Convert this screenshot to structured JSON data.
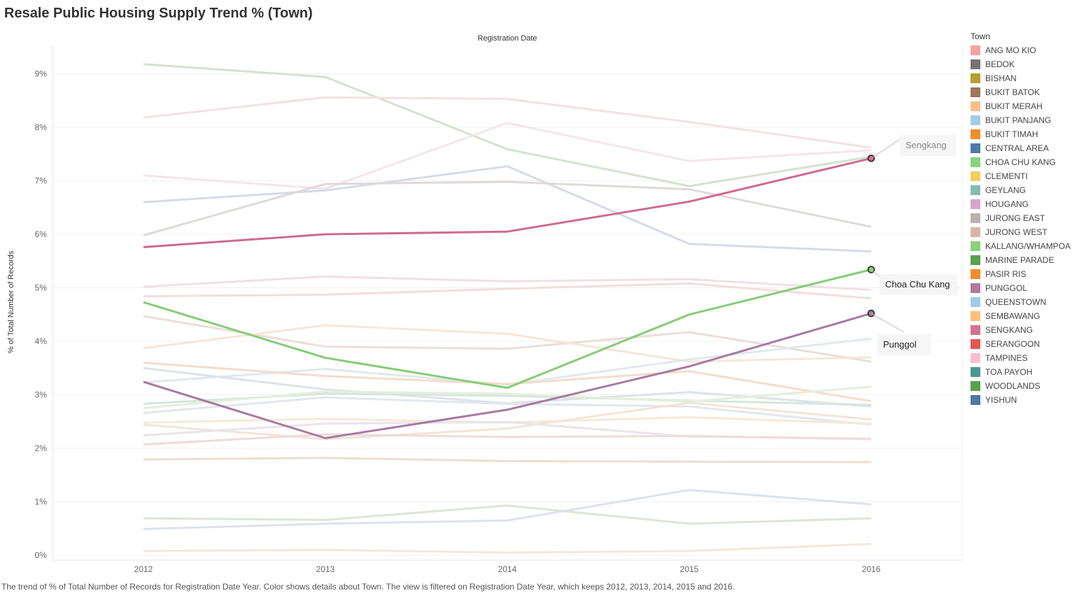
{
  "title": "Resale Public Housing Supply Trend % (Town)",
  "caption": "The trend of % of Total Number of Records for Registration Date Year.  Color shows details about Town. The view is filtered on Registration Date Year, which keeps 2012, 2013, 2014, 2015 and 2016.",
  "legend": {
    "title": "Town",
    "items": [
      {
        "label": "ANG MO KIO",
        "color": "#f4a3a3"
      },
      {
        "label": "BEDOK",
        "color": "#7a7270"
      },
      {
        "label": "BISHAN",
        "color": "#b5a02f"
      },
      {
        "label": "BUKIT BATOK",
        "color": "#a0765b"
      },
      {
        "label": "BUKIT MERAH",
        "color": "#f7c08a"
      },
      {
        "label": "BUKIT PANJANG",
        "color": "#a5cbe4"
      },
      {
        "label": "BUKIT TIMAH",
        "color": "#f28e2b"
      },
      {
        "label": "CENTRAL AREA",
        "color": "#4e79a7"
      },
      {
        "label": "CHOA CHU KANG",
        "color": "#8cd17d"
      },
      {
        "label": "CLEMENTI",
        "color": "#f1ce63"
      },
      {
        "label": "GEYLANG",
        "color": "#86bcb6"
      },
      {
        "label": "HOUGANG",
        "color": "#d4a6c8"
      },
      {
        "label": "JURONG EAST",
        "color": "#bab0ac"
      },
      {
        "label": "JURONG WEST",
        "color": "#d7b5a6"
      },
      {
        "label": "KALLANG/WHAMPOA",
        "color": "#8cd17d"
      },
      {
        "label": "MARINE PARADE",
        "color": "#59a14f"
      },
      {
        "label": "PASIR RIS",
        "color": "#f28e2b"
      },
      {
        "label": "PUNGGOL",
        "color": "#b07aa1"
      },
      {
        "label": "QUEENSTOWN",
        "color": "#a0cbe8"
      },
      {
        "label": "SEMBAWANG",
        "color": "#ffbe7d"
      },
      {
        "label": "SENGKANG",
        "color": "#d37295"
      },
      {
        "label": "SERANGOON",
        "color": "#e15759"
      },
      {
        "label": "TAMPINES",
        "color": "#fabfd2"
      },
      {
        "label": "TOA PAYOH",
        "color": "#499894"
      },
      {
        "label": "WOODLANDS",
        "color": "#59a14f"
      },
      {
        "label": "YISHUN",
        "color": "#4e79a7"
      }
    ]
  },
  "chart_data": {
    "type": "line",
    "x_title": "Registration Date",
    "ylabel": "% of Total Number of Records",
    "x": [
      2012,
      2013,
      2014,
      2015,
      2016
    ],
    "ylim": [
      -0.1,
      9.6
    ],
    "yticks": [
      0,
      1,
      2,
      3,
      4,
      5,
      6,
      7,
      8,
      9
    ],
    "ytick_labels": [
      "0%",
      "1%",
      "2%",
      "3%",
      "4%",
      "5%",
      "6%",
      "7%",
      "8%",
      "9%"
    ],
    "grid": "horizontal",
    "legend_position": "right",
    "background_series": [
      {
        "color": "#d4e2cf",
        "values": [
          9.18,
          8.94,
          7.59,
          6.9,
          7.45
        ]
      },
      {
        "color": "#f1e2e3",
        "values": [
          8.18,
          8.56,
          8.53,
          8.1,
          7.62
        ]
      },
      {
        "color": "#f3e6ea",
        "values": [
          7.1,
          6.85,
          8.08,
          7.37,
          7.57
        ]
      },
      {
        "color": "#d5dbe6",
        "values": [
          6.6,
          6.82,
          7.27,
          5.82,
          5.68
        ]
      },
      {
        "color": "#dedad8",
        "values": [
          5.98,
          6.94,
          6.98,
          6.84,
          6.14
        ]
      },
      {
        "color": "#efe0e6",
        "values": [
          5.02,
          5.21,
          5.12,
          5.16,
          4.96
        ]
      },
      {
        "color": "#f1dedc",
        "values": [
          4.84,
          4.87,
          4.98,
          5.08,
          4.8
        ]
      },
      {
        "color": "#eaded8",
        "values": [
          4.47,
          3.9,
          3.86,
          4.17,
          3.62
        ]
      },
      {
        "color": "#f7e6d8",
        "values": [
          3.87,
          4.3,
          4.14,
          3.62,
          3.7
        ]
      },
      {
        "color": "#dfe9ee",
        "values": [
          3.23,
          3.48,
          3.19,
          3.66,
          4.05
        ]
      },
      {
        "color": "#f3dccc",
        "values": [
          3.6,
          3.35,
          3.2,
          3.44,
          2.88
        ]
      },
      {
        "color": "#dce3ea",
        "values": [
          3.5,
          3.1,
          2.84,
          3.05,
          2.78
        ]
      },
      {
        "color": "#d6e6dd",
        "values": [
          2.83,
          3.02,
          2.98,
          2.89,
          2.81
        ]
      },
      {
        "color": "#e4efdc",
        "values": [
          2.75,
          3.06,
          3.02,
          2.87,
          3.15
        ]
      },
      {
        "color": "#e1e7ee",
        "values": [
          2.66,
          2.95,
          2.83,
          2.78,
          2.44
        ]
      },
      {
        "color": "#f4ead8",
        "values": [
          2.48,
          2.55,
          2.48,
          2.58,
          2.46
        ]
      },
      {
        "color": "#f3e4d6",
        "values": [
          2.44,
          2.17,
          2.37,
          2.85,
          2.54
        ]
      },
      {
        "color": "#ebe3eb",
        "values": [
          2.24,
          2.46,
          2.49,
          2.22,
          2.18
        ]
      },
      {
        "color": "#efdbdb",
        "values": [
          2.07,
          2.26,
          2.21,
          2.23,
          2.17
        ]
      },
      {
        "color": "#eaded0",
        "values": [
          1.79,
          1.82,
          1.76,
          1.75,
          1.74
        ]
      },
      {
        "color": "#dce6d5",
        "values": [
          0.69,
          0.66,
          0.93,
          0.59,
          0.69
        ]
      },
      {
        "color": "#dce2ec",
        "values": [
          0.49,
          0.59,
          0.65,
          1.22,
          0.95
        ]
      },
      {
        "color": "#f4e7d9",
        "values": [
          0.08,
          0.1,
          0.05,
          0.08,
          0.21
        ]
      }
    ],
    "series": [
      {
        "name": "SENGKANG",
        "color": "#cf6a92",
        "values": [
          5.76,
          6.0,
          6.05,
          6.61,
          7.42
        ]
      },
      {
        "name": "CHOA CHU KANG",
        "color": "#86cc77",
        "values": [
          4.73,
          3.69,
          3.13,
          4.5,
          5.34
        ]
      },
      {
        "name": "PUNGGOL",
        "color": "#a77b9f",
        "values": [
          3.24,
          2.19,
          2.72,
          3.53,
          4.52
        ]
      }
    ],
    "annotations": [
      {
        "text": "Sengkang",
        "series": "SENGKANG"
      },
      {
        "text": "Choa Chu Kang",
        "series": "CHOA CHU KANG"
      },
      {
        "text": "Punggol",
        "series": "PUNGGOL"
      }
    ]
  }
}
